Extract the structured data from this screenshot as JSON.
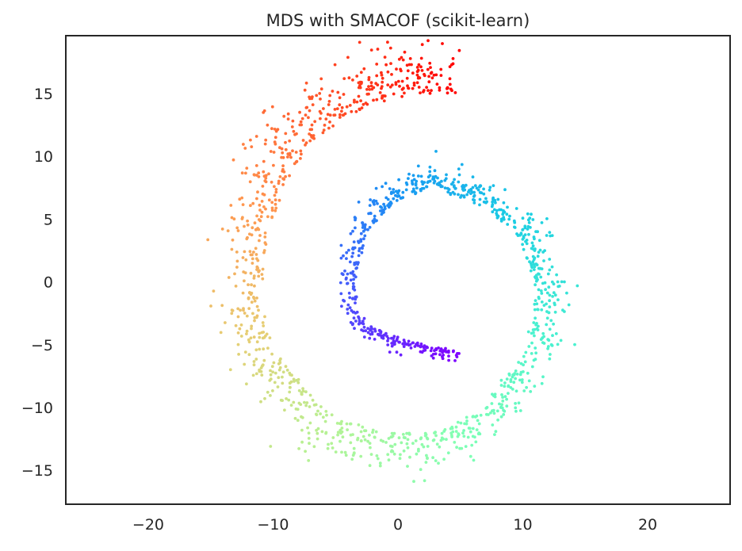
{
  "chart_data": {
    "type": "scatter",
    "title": "MDS with SMACOF (scikit-learn)",
    "xlabel": "",
    "ylabel": "",
    "xlim": [
      -26.6,
      26.6
    ],
    "ylim": [
      -17.7,
      19.6
    ],
    "x_ticks": [
      -20,
      -10,
      0,
      10,
      20
    ],
    "y_ticks": [
      -15,
      -10,
      -5,
      0,
      5,
      10,
      15
    ],
    "x_tick_labels": [
      "−20",
      "−10",
      "0",
      "10",
      "20"
    ],
    "y_tick_labels": [
      "−15",
      "−10",
      "−5",
      "0",
      "5",
      "10",
      "15"
    ],
    "grid": false,
    "colormap": "rainbow",
    "color_stops": [
      "#8000ff",
      "#4c50fc",
      "#1996f3",
      "#1acee3",
      "#4df3ce",
      "#80ffb4",
      "#b3f396",
      "#e6ce74",
      "#ff964f",
      "#ff5027",
      "#ff0000"
    ],
    "point_color": "by position along spiral (purple inner end to red outer end)",
    "point_count": 1500,
    "spiral": {
      "center": [
        3.0,
        0.0
      ],
      "inner_end": [
        4.5,
        -5.5
      ],
      "outer_end": [
        4.5,
        15.0
      ],
      "description": "points lie on a spiral that starts near (4.5,-5.5), runs west through (-3,-3), north through (-3,3), east across (3,7.5), south through (11,0) and (3,-12), west through (-6,-10), north through (-11,2) and ends near (4.5,15)",
      "path": [
        [
          4.5,
          -5.5
        ],
        [
          0.0,
          -4.5
        ],
        [
          -3.0,
          -3.0
        ],
        [
          -3.5,
          0.0
        ],
        [
          -2.5,
          4.0
        ],
        [
          0.0,
          6.5
        ],
        [
          3.0,
          7.5
        ],
        [
          6.5,
          6.0
        ],
        [
          9.5,
          4.0
        ],
        [
          11.0,
          0.0
        ],
        [
          10.5,
          -5.0
        ],
        [
          7.0,
          -10.0
        ],
        [
          3.0,
          -12.0
        ],
        [
          -1.5,
          -12.0
        ],
        [
          -6.0,
          -10.0
        ],
        [
          -9.5,
          -6.0
        ],
        [
          -11.0,
          -2.0
        ],
        [
          -10.5,
          3.0
        ],
        [
          -9.0,
          8.0
        ],
        [
          -6.5,
          11.5
        ],
        [
          -2.5,
          14.0
        ],
        [
          1.5,
          15.0
        ],
        [
          4.5,
          15.0
        ]
      ],
      "spread_inner": 0.6,
      "spread_outer": 3.5
    }
  }
}
